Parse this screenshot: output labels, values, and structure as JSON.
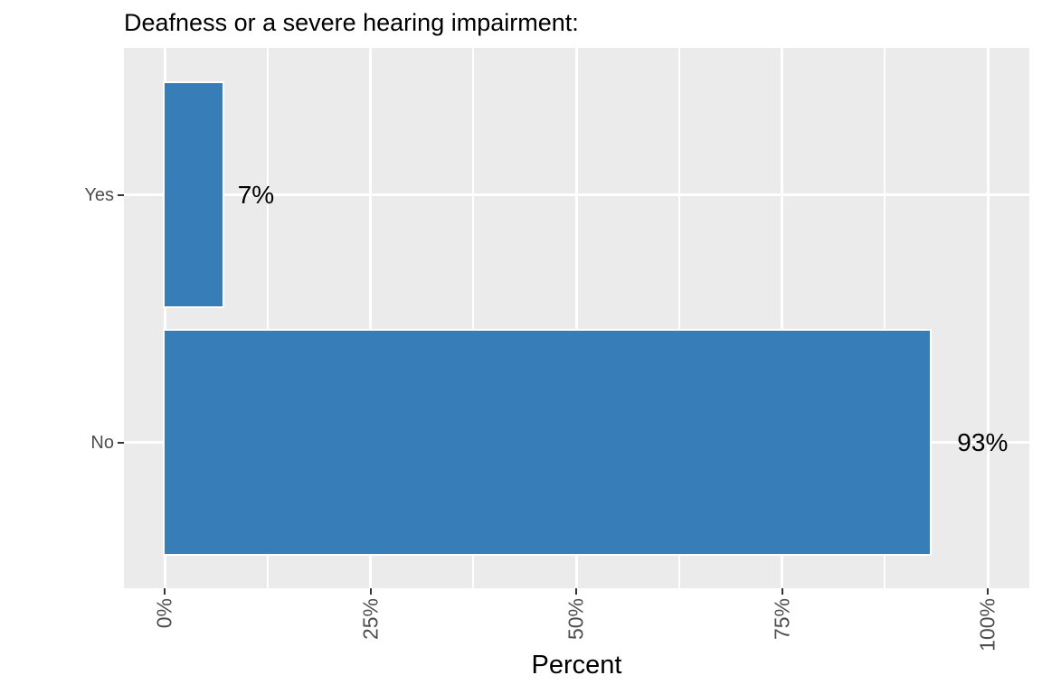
{
  "title": "Deafness or a severe hearing impairment:",
  "chart_data": {
    "type": "bar",
    "orientation": "horizontal",
    "title": "Deafness or a severe hearing impairment:",
    "xlabel": "Percent",
    "ylabel": "",
    "categories": [
      "Yes",
      "No"
    ],
    "values": [
      7,
      93
    ],
    "value_labels": [
      "7%",
      "93%"
    ],
    "xlim": [
      0,
      100
    ],
    "x_ticks": [
      0,
      25,
      50,
      75,
      100
    ],
    "x_tick_labels": [
      "0%",
      "25%",
      "50%",
      "75%",
      "100%"
    ],
    "x_minor_ticks": [
      12.5,
      37.5,
      62.5,
      87.5
    ],
    "grid": true,
    "legend": false,
    "colors": {
      "bar_fill": "#377EB8",
      "bar_border": "#FFFFFF",
      "panel_background": "#EBEBEB",
      "gridline": "#FFFFFF",
      "axis_tick_text": "#4D4D4D",
      "tick_mark": "#333333",
      "text": "#000000"
    }
  }
}
